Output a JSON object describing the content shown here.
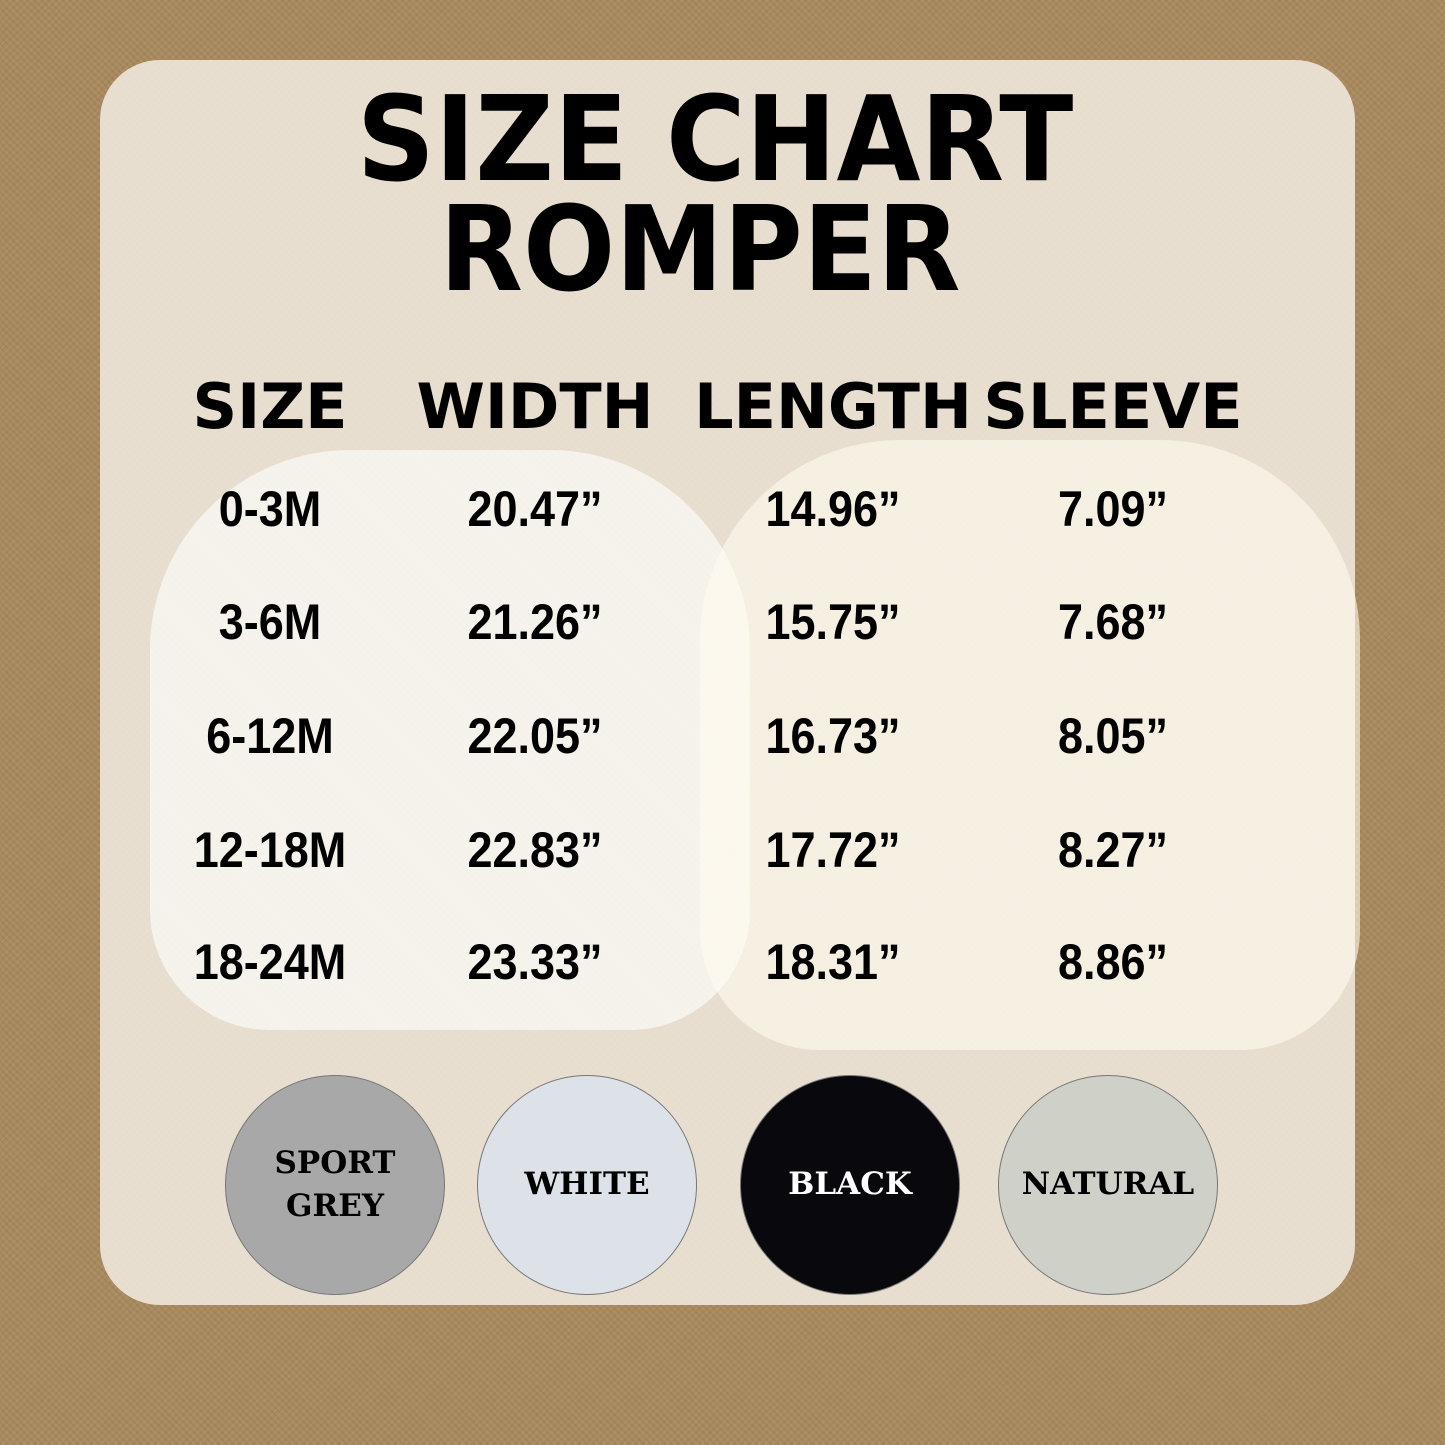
{
  "title": {
    "line1": "SIZE CHART",
    "line2": "ROMPER"
  },
  "table": {
    "headers": [
      "SIZE",
      "WIDTH",
      "LENGTH",
      "SLEEVE"
    ],
    "rows": [
      [
        "0-3M",
        "20.47”",
        "14.96”",
        "7.09”"
      ],
      [
        "3-6M",
        "21.26”",
        "15.75”",
        "7.68”"
      ],
      [
        "6-12M",
        "22.05”",
        "16.73”",
        "8.05”"
      ],
      [
        "12-18M",
        "22.83”",
        "17.72”",
        "8.27”"
      ],
      [
        "18-24M",
        "23.33”",
        "18.31”",
        "8.86”"
      ]
    ]
  },
  "colors": [
    {
      "label": "SPORT GREY",
      "color": "#a8a8a8"
    },
    {
      "label": "WHITE",
      "color": "#dde2e8"
    },
    {
      "label": "BLACK",
      "color": "#08080d"
    },
    {
      "label": "NATURAL",
      "color": "#cfd0c7"
    }
  ]
}
